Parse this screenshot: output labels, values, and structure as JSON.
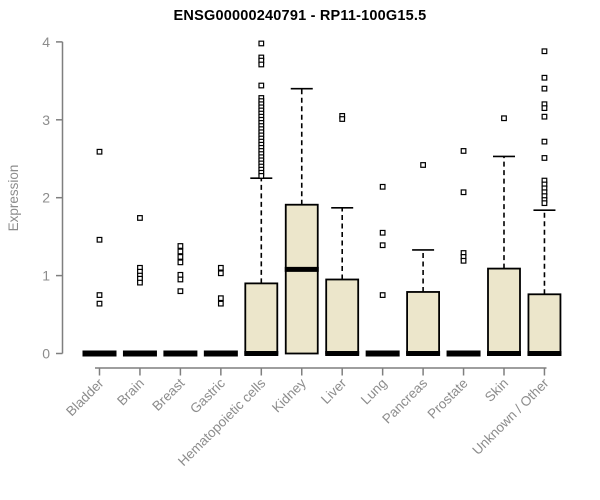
{
  "chart_data": {
    "type": "boxplot",
    "title": "ENSG00000240791 - RP11-100G15.5",
    "xlabel": "",
    "ylabel": "Expression",
    "ylim": [
      0,
      4
    ],
    "yticks": [
      0,
      1,
      2,
      3,
      4
    ],
    "grid": false,
    "legend": null,
    "outlier_marker": "open-square",
    "colors": {
      "box_fill": "#ECE6CB",
      "box_stroke": "#000000",
      "median": "#000000",
      "whisker": "#000000",
      "axis": "#7F7F7F",
      "tick_text": "#8C8C8C",
      "title_text": "#000000"
    },
    "categories": [
      "Bladder",
      "Brain",
      "Breast",
      "Gastric",
      "Hematopoietic cells",
      "Kidney",
      "Liver",
      "Lung",
      "Pancreas",
      "Prostate",
      "Skin",
      "Unknown / Other"
    ],
    "boxes": [
      {
        "label": "Bladder",
        "q1": 0,
        "median": 0,
        "q3": 0,
        "whisker_low": 0,
        "whisker_high": 0,
        "outliers": [
          2.59,
          1.46,
          0.75,
          0.64
        ]
      },
      {
        "label": "Brain",
        "q1": 0,
        "median": 0,
        "q3": 0,
        "whisker_low": 0,
        "whisker_high": 0,
        "outliers": [
          1.74,
          1.1,
          1.05,
          1.0,
          0.96,
          0.91
        ]
      },
      {
        "label": "Breast",
        "q1": 0,
        "median": 0,
        "q3": 0,
        "whisker_low": 0,
        "whisker_high": 0,
        "outliers": [
          1.38,
          1.31,
          1.24,
          1.17,
          1.01,
          0.95,
          0.8
        ]
      },
      {
        "label": "Gastric",
        "q1": 0,
        "median": 0,
        "q3": 0,
        "whisker_low": 0,
        "whisker_high": 0,
        "outliers": [
          1.1,
          1.03,
          0.71,
          0.64
        ]
      },
      {
        "label": "Hematopoietic cells",
        "q1": 0,
        "median": 0,
        "q3": 0.9,
        "whisker_low": 0,
        "whisker_high": 2.25,
        "outliers": [
          3.98,
          3.8,
          3.76,
          3.71,
          3.44,
          3.28,
          3.24,
          3.2,
          3.16,
          3.12,
          3.08,
          3.04,
          3.0,
          2.96,
          2.92,
          2.88,
          2.84,
          2.8,
          2.76,
          2.72,
          2.68,
          2.64,
          2.6,
          2.56,
          2.52,
          2.48,
          2.44,
          2.4,
          2.36,
          2.32,
          2.28
        ]
      },
      {
        "label": "Kidney",
        "q1": 0,
        "median": 1.08,
        "q3": 1.91,
        "whisker_low": 0,
        "whisker_high": 3.4,
        "outliers": []
      },
      {
        "label": "Liver",
        "q1": 0,
        "median": 0,
        "q3": 0.95,
        "whisker_low": 0,
        "whisker_high": 1.87,
        "outliers": [
          3.05,
          3.01
        ]
      },
      {
        "label": "Lung",
        "q1": 0,
        "median": 0,
        "q3": 0,
        "whisker_low": 0,
        "whisker_high": 0,
        "outliers": [
          2.14,
          1.55,
          1.39,
          0.75
        ]
      },
      {
        "label": "Pancreas",
        "q1": 0,
        "median": 0,
        "q3": 0.79,
        "whisker_low": 0,
        "whisker_high": 1.33,
        "outliers": [
          2.42
        ]
      },
      {
        "label": "Prostate",
        "q1": 0,
        "median": 0,
        "q3": 0,
        "whisker_low": 0,
        "whisker_high": 0,
        "outliers": [
          2.6,
          2.07,
          1.29,
          1.24,
          1.19
        ]
      },
      {
        "label": "Skin",
        "q1": 0,
        "median": 0,
        "q3": 1.09,
        "whisker_low": 0,
        "whisker_high": 2.53,
        "outliers": [
          3.02
        ]
      },
      {
        "label": "Unknown / Other",
        "q1": 0,
        "median": 0,
        "q3": 0.76,
        "whisker_low": 0,
        "whisker_high": 1.84,
        "outliers": [
          3.88,
          3.54,
          3.4,
          3.2,
          3.15,
          3.04,
          2.72,
          2.51,
          2.22,
          2.17,
          2.12,
          2.07,
          2.02,
          1.97,
          1.93
        ]
      }
    ]
  }
}
